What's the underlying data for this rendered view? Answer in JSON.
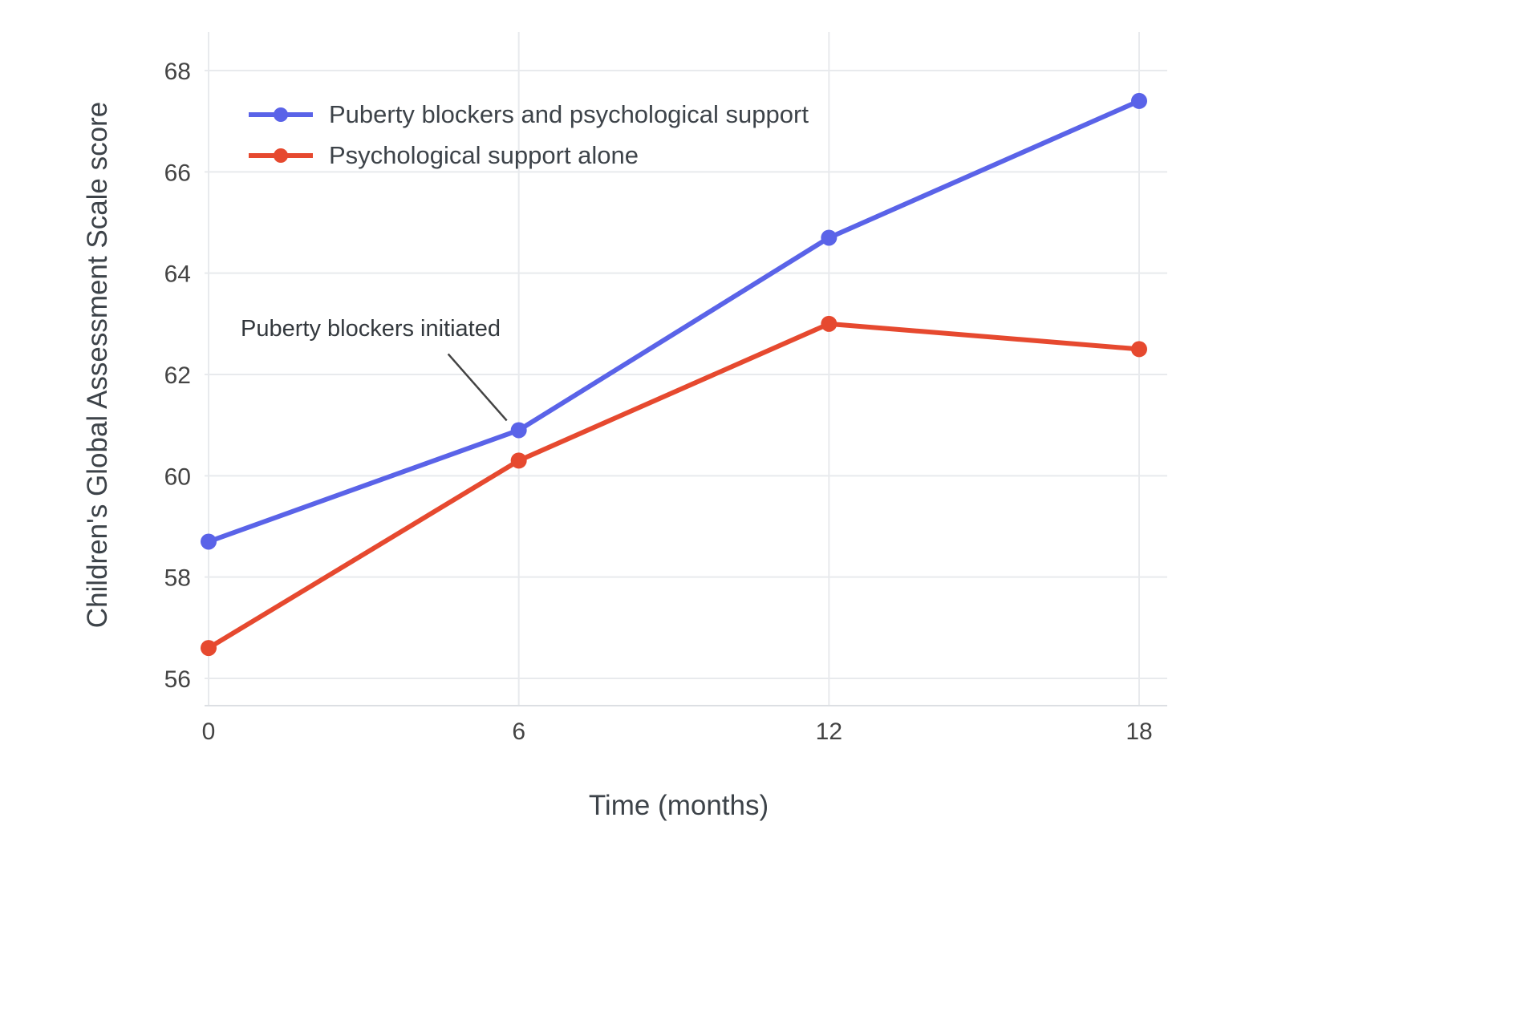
{
  "chart_data": {
    "type": "line",
    "x": [
      0,
      6,
      12,
      18
    ],
    "xticks": [
      0,
      6,
      12,
      18
    ],
    "yticks": [
      56,
      58,
      60,
      62,
      64,
      66,
      68
    ],
    "xlabel": "Time (months)",
    "ylabel": "Children's Global Assessment Scale score",
    "ylim": [
      55.5,
      68.8
    ],
    "xlim": [
      -0.1,
      18.6
    ],
    "grid": true,
    "legend_position": "top-left-inside",
    "series": [
      {
        "name": "Puberty blockers and psychological support",
        "color": "#5a63e8",
        "values": [
          58.7,
          60.9,
          64.7,
          67.4
        ]
      },
      {
        "name": "Psychological support alone",
        "color": "#e6492f",
        "values": [
          56.6,
          60.3,
          63.0,
          62.5
        ]
      }
    ],
    "annotation": {
      "text": "Puberty blockers initiated",
      "x": 6,
      "y": 60.9
    },
    "colors": {
      "background": "#ffffff",
      "grid": "#e8eaed",
      "axis_line": "#dcdfe3",
      "tick_text": "#444444",
      "annotation_line": "#444444"
    }
  }
}
